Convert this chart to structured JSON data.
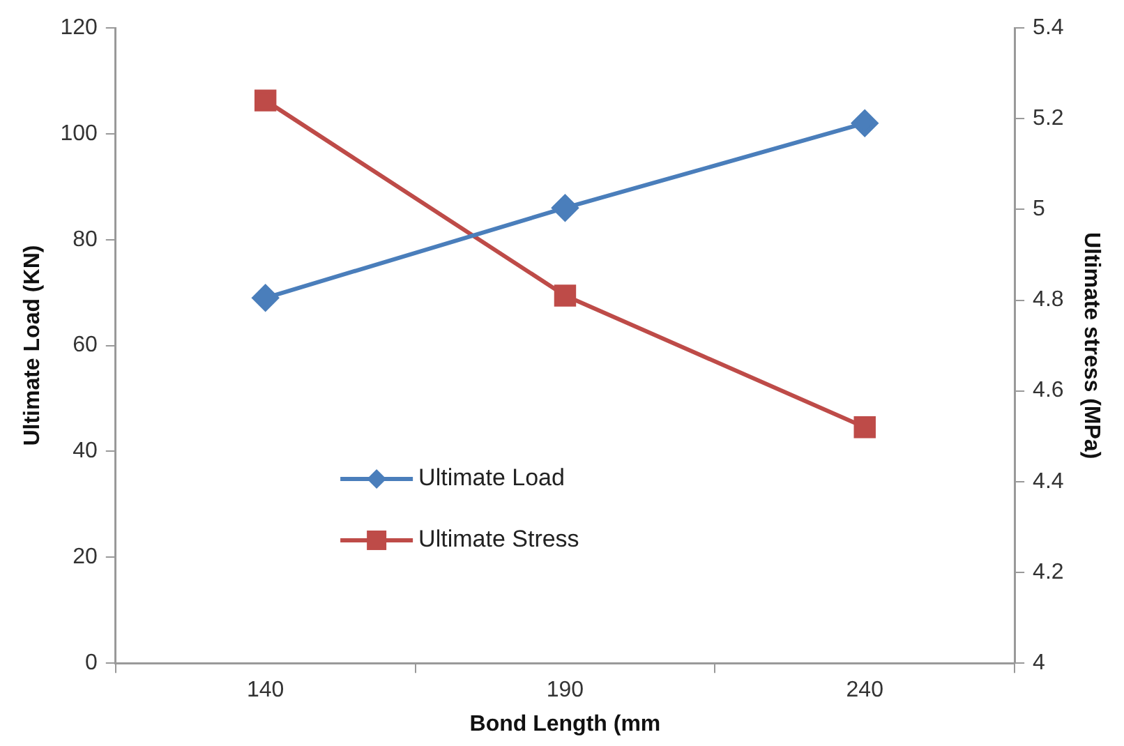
{
  "chart_data": {
    "type": "line",
    "xlabel": "Bond Length (mm",
    "ylabel": "Ultimate Load (KN)",
    "y2label": "Ultimate stress (MPa)",
    "categories": [
      "140",
      "190",
      "240"
    ],
    "series": [
      {
        "name": "Ultimate Load",
        "color": "#4a7ebb",
        "marker": "diamond",
        "values": [
          69,
          86,
          102
        ]
      },
      {
        "name": "Ultimate Stress",
        "color": "#be4b48",
        "marker": "square",
        "axis": "y2",
        "values": [
          5.24,
          4.81,
          4.52
        ]
      }
    ],
    "ylim": [
      0,
      120
    ],
    "yticks": [
      0,
      20,
      40,
      60,
      80,
      100,
      120
    ],
    "y2lim": [
      4,
      5.4
    ],
    "y2ticks": [
      {
        "value": 4,
        "label": "4"
      },
      {
        "value": 4.2,
        "label": "4.2"
      },
      {
        "value": 4.4,
        "label": "4.4"
      },
      {
        "value": 4.6,
        "label": "4.6"
      },
      {
        "value": 4.8,
        "label": "4.8"
      },
      {
        "value": 5,
        "label": "5"
      },
      {
        "value": 5.2,
        "label": "5.2"
      },
      {
        "value": 5.4,
        "label": "5.4"
      }
    ],
    "grid": false,
    "legend": "bottom left",
    "line_style": "solid"
  }
}
